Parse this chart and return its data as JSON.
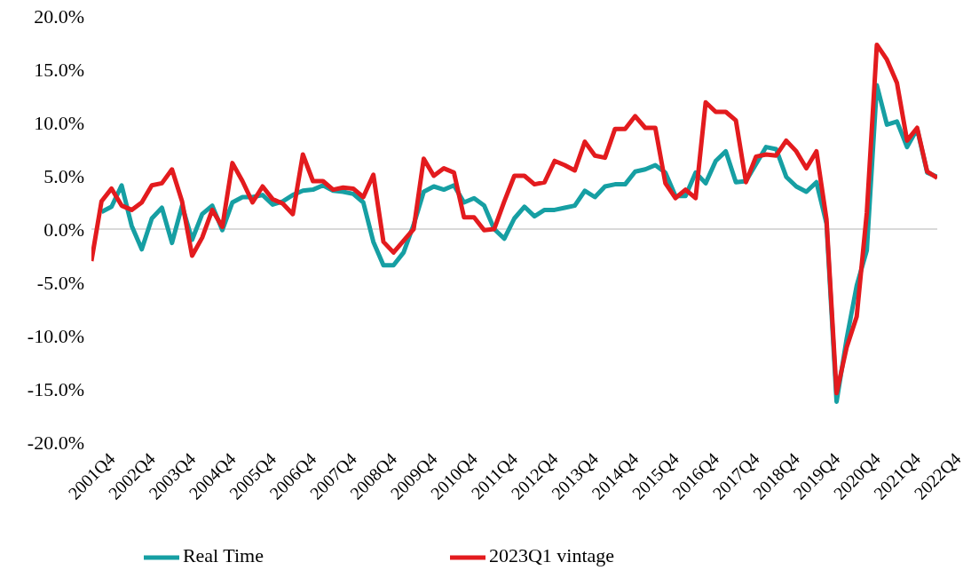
{
  "chart_data": {
    "type": "line",
    "categories": [
      "2001Q4",
      null,
      null,
      null,
      "2002Q4",
      null,
      null,
      null,
      "2003Q4",
      null,
      null,
      null,
      "2004Q4",
      null,
      null,
      null,
      "2005Q4",
      null,
      null,
      null,
      "2006Q4",
      null,
      null,
      null,
      "2007Q4",
      null,
      null,
      null,
      "2008Q4",
      null,
      null,
      null,
      "2009Q4",
      null,
      null,
      null,
      "2010Q4",
      null,
      null,
      null,
      "2011Q4",
      null,
      null,
      null,
      "2012Q4",
      null,
      null,
      null,
      "2013Q4",
      null,
      null,
      null,
      "2014Q4",
      null,
      null,
      null,
      "2015Q4",
      null,
      null,
      null,
      "2016Q4",
      null,
      null,
      null,
      "2017Q4",
      null,
      null,
      null,
      "2018Q4",
      null,
      null,
      null,
      "2019Q4",
      null,
      null,
      null,
      "2020Q4",
      null,
      null,
      null,
      "2021Q4",
      null,
      null,
      null,
      "2022Q4"
    ],
    "series": [
      {
        "name": "Real Time",
        "color": "#169fa3",
        "values": [
          null,
          1.6,
          2.1,
          4.1,
          0.3,
          -1.9,
          1.0,
          2.0,
          -1.3,
          2.2,
          -1.0,
          1.4,
          2.2,
          -0.1,
          2.5,
          3.0,
          3.0,
          3.2,
          2.3,
          2.6,
          3.2,
          3.6,
          3.7,
          4.1,
          3.6,
          3.5,
          3.3,
          2.5,
          -1.2,
          -3.4,
          -3.4,
          -2.2,
          0.4,
          3.5,
          4.0,
          3.7,
          4.1,
          2.5,
          2.9,
          2.2,
          0.0,
          -0.9,
          1.0,
          2.1,
          1.2,
          1.8,
          1.8,
          2.0,
          2.2,
          3.6,
          3.0,
          4.0,
          4.2,
          4.2,
          5.4,
          5.6,
          6.0,
          5.3,
          3.1,
          3.1,
          5.3,
          4.3,
          6.4,
          7.3,
          4.4,
          4.5,
          6.1,
          7.7,
          7.5,
          4.9,
          4.0,
          3.5,
          4.4,
          0.5,
          -16.2,
          -10.3,
          -5.3,
          -2.0,
          13.5,
          9.8,
          10.1,
          7.7,
          9.4,
          5.3,
          4.9
        ]
      },
      {
        "name": "2023Q1 vintage",
        "color": "#e31b1e",
        "values": [
          -3.0,
          2.6,
          3.8,
          2.2,
          1.8,
          2.5,
          4.1,
          4.3,
          5.6,
          2.6,
          -2.5,
          -0.8,
          1.8,
          0.2,
          6.2,
          4.5,
          2.5,
          4.0,
          2.8,
          2.4,
          1.4,
          7.0,
          4.5,
          4.5,
          3.7,
          3.9,
          3.8,
          3.0,
          5.1,
          -1.2,
          -2.2,
          -1.1,
          0.0,
          6.6,
          5.0,
          5.7,
          5.3,
          1.1,
          1.1,
          -0.1,
          0.0,
          2.6,
          5.0,
          5.0,
          4.2,
          4.4,
          6.4,
          6.0,
          5.5,
          8.2,
          6.9,
          6.7,
          9.4,
          9.4,
          10.6,
          9.5,
          9.5,
          4.3,
          2.9,
          3.7,
          2.9,
          11.9,
          11.0,
          11.0,
          10.2,
          4.4,
          6.8,
          7.0,
          6.9,
          8.3,
          7.3,
          5.7,
          7.3,
          0.9,
          -15.4,
          -11.1,
          -8.2,
          1.5,
          17.3,
          15.9,
          13.7,
          8.3,
          9.5,
          5.4,
          4.8
        ]
      }
    ],
    "ylim": [
      -20,
      20
    ],
    "yticks": [
      {
        "value": -20,
        "label": "-20.0%"
      },
      {
        "value": -15,
        "label": "-15.0%"
      },
      {
        "value": -10,
        "label": "-10.0%"
      },
      {
        "value": -5,
        "label": "-5.0%"
      },
      {
        "value": 0,
        "label": "0.0%"
      },
      {
        "value": 5,
        "label": "5.0%"
      },
      {
        "value": 10,
        "label": "10.0%"
      },
      {
        "value": 15,
        "label": "15.0%"
      },
      {
        "value": 20,
        "label": "20.0%"
      }
    ],
    "ref_lines": [
      {
        "axis": "y",
        "value": 0,
        "color": "#d9d9d9"
      }
    ],
    "grid": false,
    "legend": "bottom",
    "marker": "none",
    "line_style": "solid"
  }
}
